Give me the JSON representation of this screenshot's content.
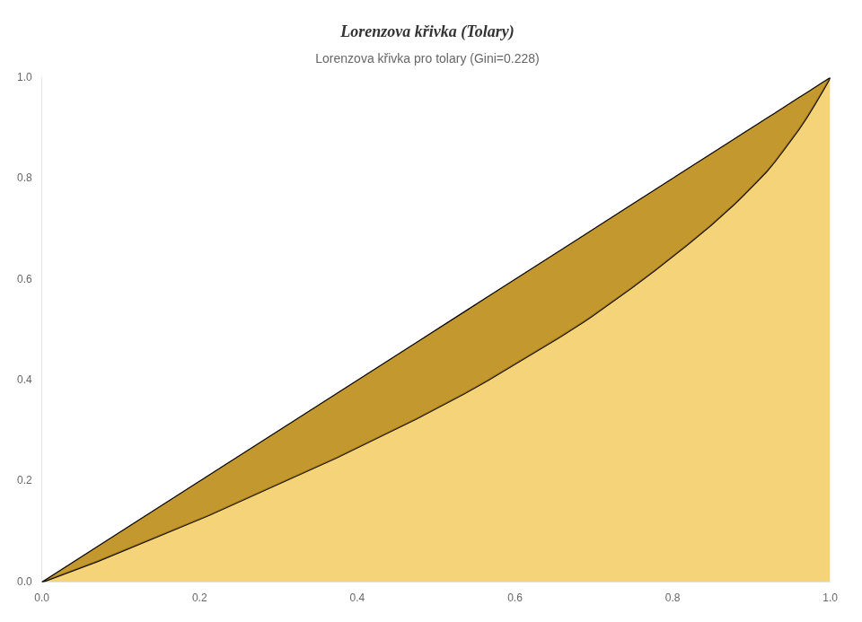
{
  "chart_data": {
    "type": "line",
    "title": "Lorenzova křivka (Tolary)",
    "subtitle": "Lorenzova křivka pro tolary (Gini=0.228)",
    "x": [
      0,
      0.070707,
      0.212121,
      0.373737,
      0.474747,
      0.535354,
      0.565657,
      0.656566,
      0.686869,
      0.69697,
      0.747475,
      0.777778,
      0.818182,
      0.848485,
      0.878788,
      0.888889,
      0.909091,
      0.919192,
      0.929293,
      0.939394,
      0.959596,
      0.969697,
      0.979798,
      0.989899,
      1
    ],
    "series": [
      {
        "type": "area",
        "color": "#b8860b",
        "values": [
          0,
          0.070707,
          0.212121,
          0.373737,
          0.474747,
          0.535354,
          0.565657,
          0.656566,
          0.686869,
          0.69697,
          0.747475,
          0.777778,
          0.818182,
          0.848485,
          0.878788,
          0.888889,
          0.909091,
          0.919192,
          0.929293,
          0.939394,
          0.959596,
          0.969697,
          0.979798,
          0.989899,
          1
        ]
      },
      {
        "type": "area",
        "color": "#f0c040",
        "values": [
          0,
          0.041494,
          0.13278,
          0.246592,
          0.323651,
          0.373444,
          0.400119,
          0.485477,
          0.515708,
          0.526378,
          0.582691,
          0.618257,
          0.66805,
          0.707172,
          0.749852,
          0.765264,
          0.797273,
          0.813871,
          0.832839,
          0.853586,
          0.896266,
          0.919976,
          0.945465,
          0.97214,
          1
        ]
      }
    ],
    "xlim": [
      0,
      1
    ],
    "ylim": [
      0,
      1
    ],
    "xticks": [
      {
        "value": 0,
        "label": "0.0"
      },
      {
        "value": 0.2,
        "label": "0.2"
      },
      {
        "value": 0.4,
        "label": "0.4"
      },
      {
        "value": 0.6,
        "label": "0.6"
      },
      {
        "value": 0.8,
        "label": "0.8"
      },
      {
        "value": 1,
        "label": "1.0"
      }
    ],
    "yticks": [
      {
        "value": 0,
        "label": "0.0"
      },
      {
        "value": 0.2,
        "label": "0.2"
      },
      {
        "value": 0.4,
        "label": "0.4"
      },
      {
        "value": 0.6,
        "label": "0.6"
      },
      {
        "value": 0.8,
        "label": "0.8"
      },
      {
        "value": 1,
        "label": "1.0"
      }
    ],
    "grid": false
  }
}
